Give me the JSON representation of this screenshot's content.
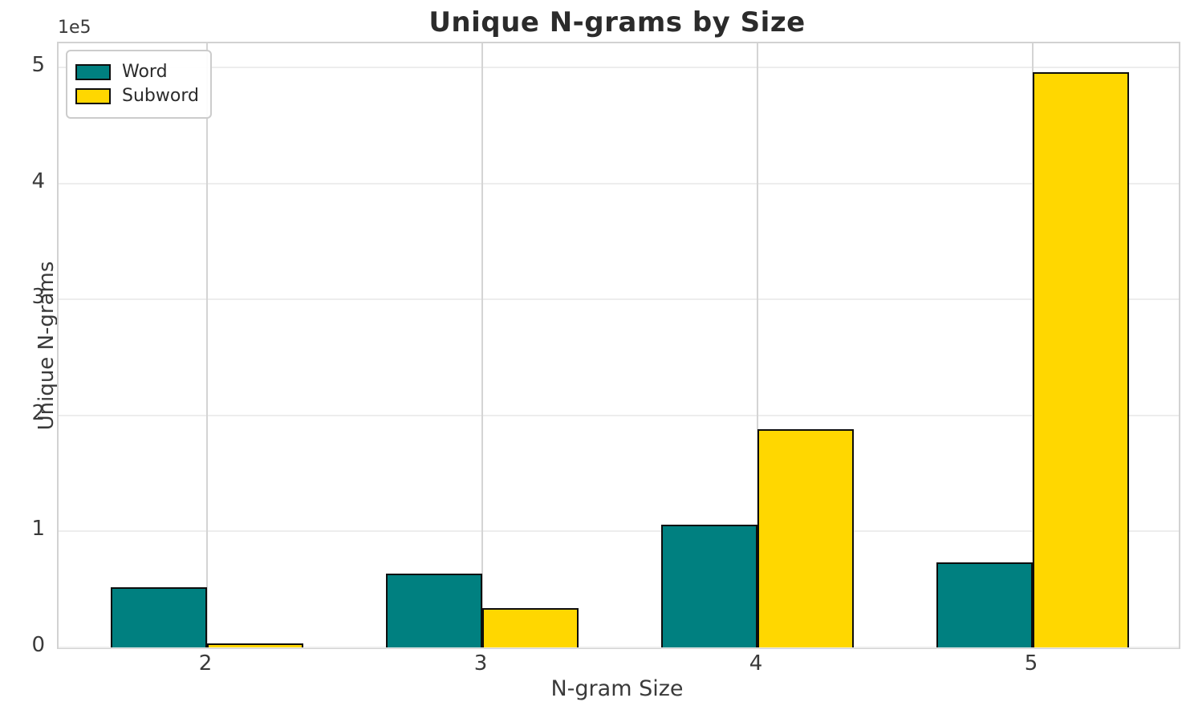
{
  "chart_data": {
    "type": "bar",
    "title": "Unique N-grams by Size",
    "xlabel": "N-gram Size",
    "ylabel": "Unique N-grams",
    "y_offset_text": "1e5",
    "categories": [
      "2",
      "3",
      "4",
      "5"
    ],
    "series": [
      {
        "name": "Word",
        "color": "#008080",
        "values": [
          52000,
          64000,
          106000,
          73000
        ]
      },
      {
        "name": "Subword",
        "color": "#ffd700",
        "values": [
          3500,
          34000,
          188000,
          496000
        ]
      }
    ],
    "bar_edge_color": "#0d0d0d",
    "ylim": [
      0,
      521000
    ],
    "yticks": [
      "0",
      "1",
      "2",
      "3",
      "4",
      "5"
    ],
    "ytick_values": [
      0,
      100000,
      200000,
      300000,
      400000,
      500000
    ],
    "y_scale_factor": 100000,
    "grid": "both",
    "legend_position": "upper-left",
    "colors": {
      "title_text": "#2b2b2b",
      "axis_text": "#3a3a3a",
      "spine": "#d2d2d2",
      "grid_h": "#ededed",
      "grid_v": "#d4d4d4",
      "background": "#ffffff"
    }
  }
}
